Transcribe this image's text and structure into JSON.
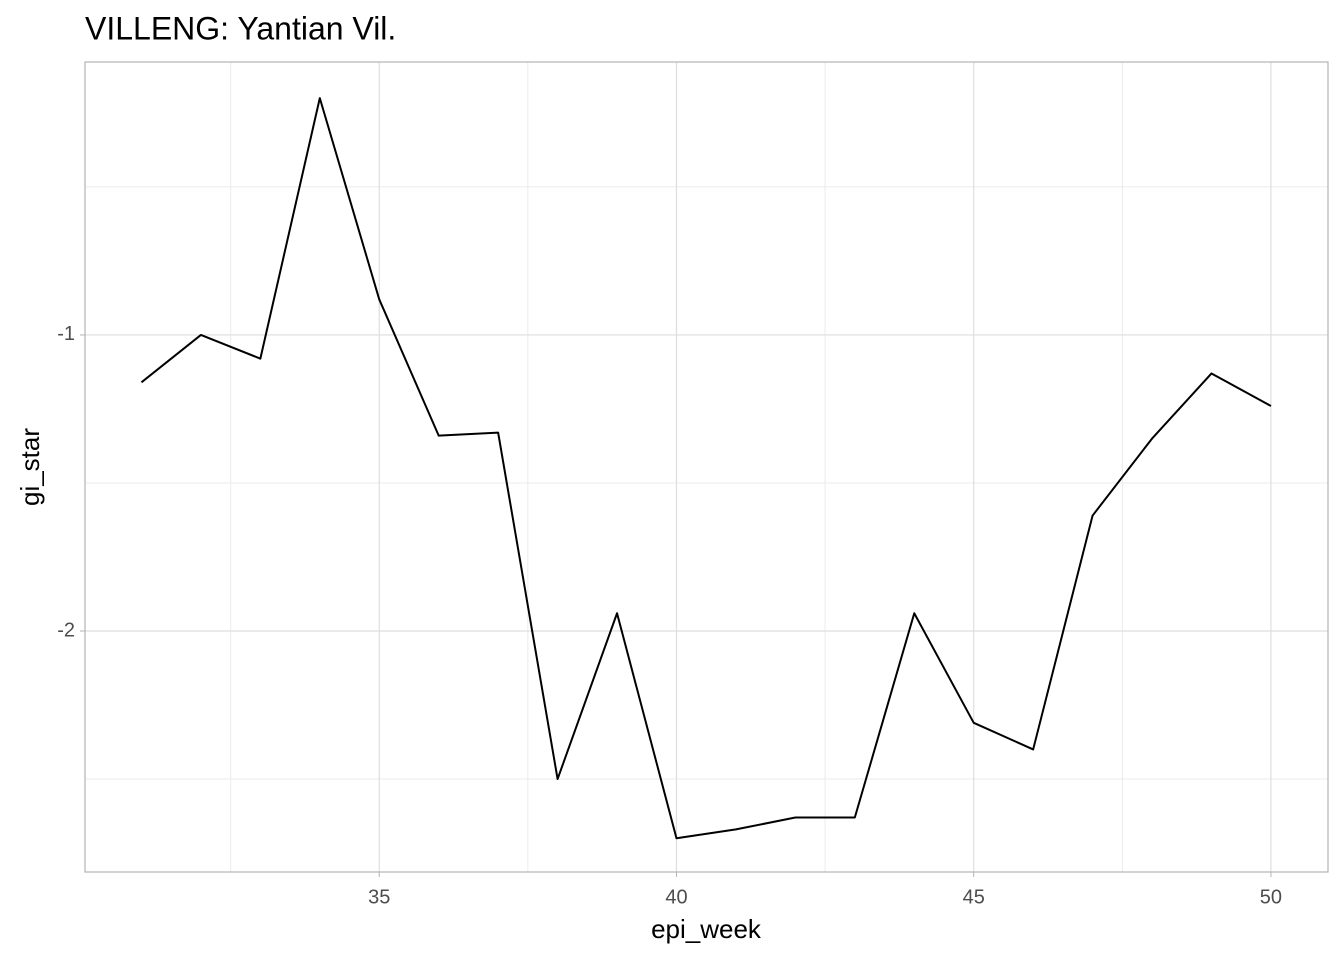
{
  "chart_data": {
    "type": "line",
    "title": "VILLENG: Yantian  Vil.",
    "x_label": "epi_week",
    "y_label": "gi_star",
    "x": [
      31,
      32,
      33,
      34,
      35,
      36,
      37,
      38,
      39,
      40,
      41,
      42,
      43,
      44,
      45,
      46,
      47,
      48,
      49,
      50
    ],
    "series": [
      {
        "color": "#000000",
        "values": [
          -1.16,
          -1.0,
          -1.08,
          -0.2,
          -0.88,
          -1.34,
          -1.33,
          -2.5,
          -1.94,
          -2.7,
          -2.67,
          -2.63,
          -2.63,
          -1.94,
          -2.31,
          -2.4,
          -1.61,
          -1.35,
          -1.13,
          -1.24
        ]
      }
    ],
    "xlim": [
      30.05,
      50.96
    ],
    "ylim": [
      -2.814,
      -0.078
    ],
    "xticks": [
      35,
      40,
      45,
      50
    ],
    "yticks": [
      -2,
      -1
    ],
    "xminor": [
      32.5,
      37.5,
      42.5,
      47.5
    ],
    "yminor": [
      -2.5,
      -1.5,
      -0.5
    ],
    "grid": true
  }
}
